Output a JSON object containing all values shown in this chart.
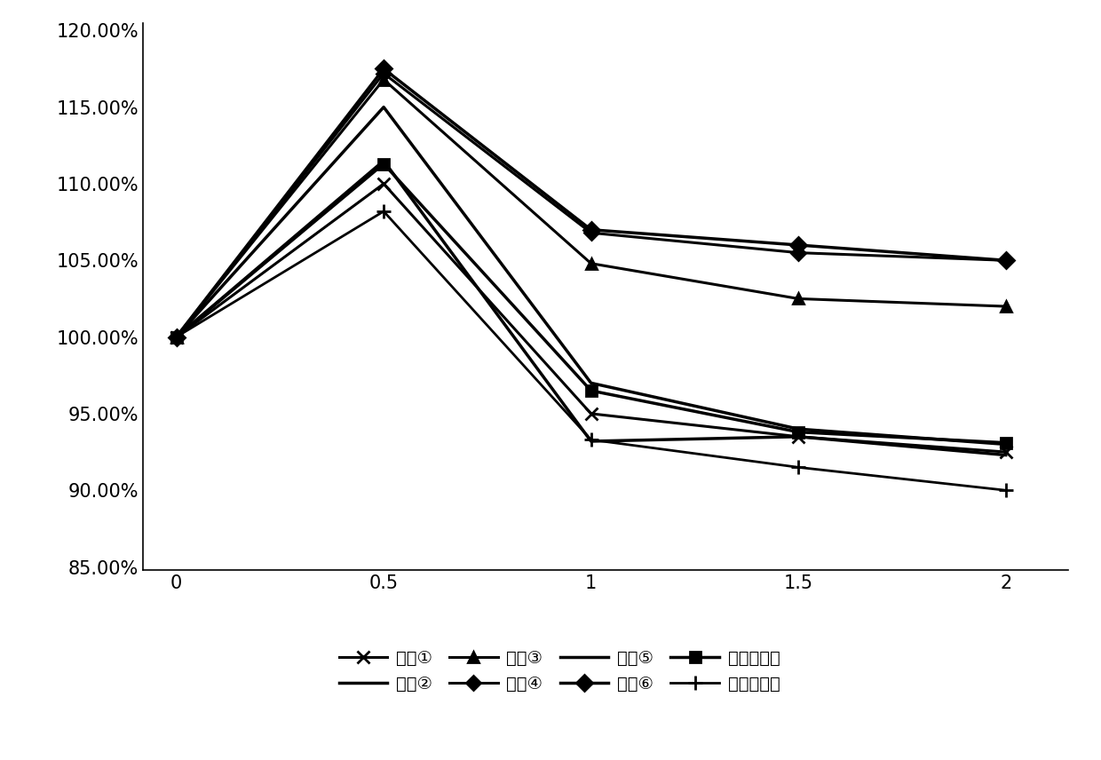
{
  "x": [
    0,
    0.5,
    1,
    1.5,
    2
  ],
  "series": [
    {
      "label": "配方①",
      "values": [
        1.0,
        1.1,
        0.95,
        0.935,
        0.925
      ],
      "marker": "x",
      "markersize": 10,
      "linewidth": 2.2
    },
    {
      "label": "配方②",
      "values": [
        1.0,
        1.15,
        0.97,
        0.94,
        0.93
      ],
      "marker": "None",
      "markersize": 8,
      "linewidth": 2.5
    },
    {
      "label": "配方③",
      "values": [
        1.0,
        1.168,
        1.048,
        1.025,
        1.02
      ],
      "marker": "^",
      "markersize": 9,
      "linewidth": 2.2
    },
    {
      "label": "配方④",
      "values": [
        1.0,
        1.172,
        1.068,
        1.055,
        1.05
      ],
      "marker": "D",
      "markersize": 8,
      "linewidth": 2.2
    },
    {
      "label": "配方⑤",
      "values": [
        1.0,
        1.115,
        0.932,
        0.935,
        0.923
      ],
      "marker": "None",
      "markersize": 8,
      "linewidth": 2.5
    },
    {
      "label": "配方⑥",
      "values": [
        1.0,
        1.175,
        1.07,
        1.06,
        1.05
      ],
      "marker": "D",
      "markersize": 9,
      "linewidth": 2.5
    },
    {
      "label": "市售珠光型",
      "values": [
        1.0,
        1.113,
        0.965,
        0.938,
        0.931
      ],
      "marker": "s",
      "markersize": 9,
      "linewidth": 2.5
    },
    {
      "label": "市售透明型",
      "values": [
        1.0,
        1.082,
        0.933,
        0.915,
        0.9
      ],
      "marker": "+",
      "markersize": 12,
      "linewidth": 2.0
    }
  ],
  "ylim": [
    0.848,
    1.205
  ],
  "yticks": [
    0.85,
    0.9,
    0.95,
    1.0,
    1.05,
    1.1,
    1.15,
    1.2
  ],
  "xlim": [
    -0.08,
    2.15
  ],
  "xticks": [
    0,
    0.5,
    1,
    1.5,
    2
  ],
  "background_color": "#ffffff",
  "line_color": "#000000",
  "legend_fontsize": 14,
  "tick_fontsize": 15
}
